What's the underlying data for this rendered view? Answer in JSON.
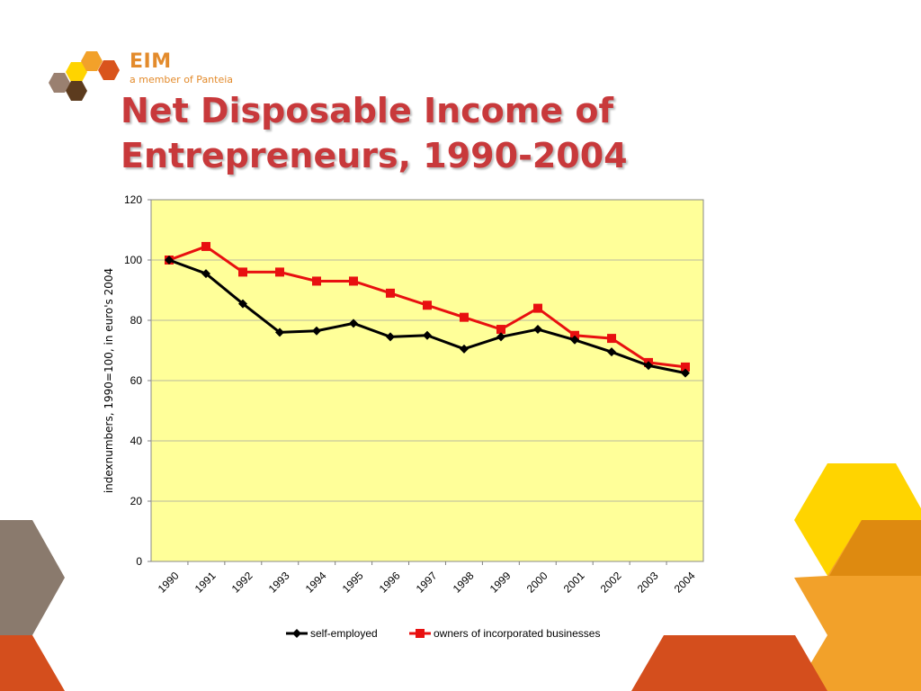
{
  "branding": {
    "name": "EIM",
    "subtitle": "a member of Panteia"
  },
  "slide": {
    "title_line1": "Net Disposable Income of",
    "title_line2": "Entrepreneurs, 1990-2004"
  },
  "colors": {
    "title": "#c8393b",
    "plot_background": "#ffff99",
    "series_self_employed": "#000000",
    "series_owners": "#e81010",
    "logo_orange": "#e38b2c"
  },
  "chart_data": {
    "type": "line",
    "title": "",
    "xlabel": "",
    "ylabel": "indexnumbers, 1990=100, in euro's 2004",
    "x": [
      "1990",
      "1991",
      "1992",
      "1993",
      "1994",
      "1995",
      "1996",
      "1997",
      "1998",
      "1999",
      "2000",
      "2001",
      "2002",
      "2003",
      "2004"
    ],
    "ylim": [
      0,
      120
    ],
    "yticks": [
      "0",
      "20",
      "40",
      "60",
      "80",
      "100",
      "120"
    ],
    "grid": true,
    "legend_position": "bottom",
    "series": [
      {
        "name": "self-employed",
        "marker": "diamond",
        "values": [
          100,
          95.5,
          85.5,
          76,
          76.5,
          79,
          74.5,
          75,
          70.5,
          74.5,
          77,
          73.5,
          69.5,
          65,
          62.5
        ]
      },
      {
        "name": "owners of incorporated businesses",
        "marker": "square",
        "values": [
          100,
          104.5,
          96,
          96,
          93,
          93,
          89,
          85,
          81,
          77,
          84,
          75,
          74,
          66,
          64.5
        ]
      }
    ]
  }
}
